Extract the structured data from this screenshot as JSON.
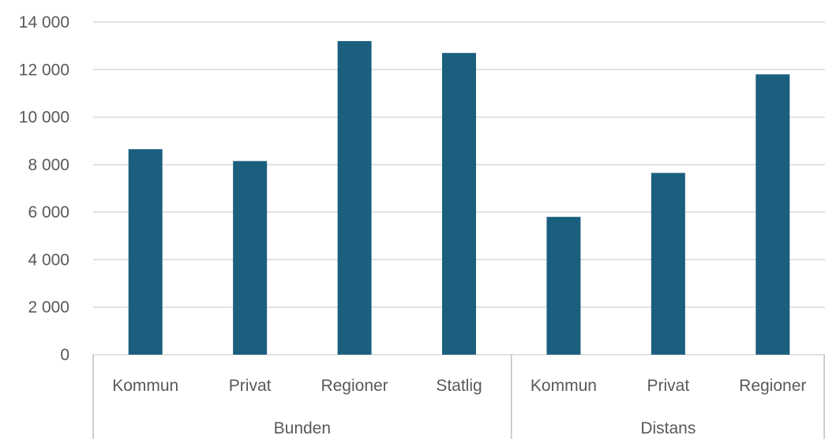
{
  "chart_data": {
    "type": "bar",
    "groups": [
      {
        "name": "Bunden",
        "categories": [
          "Kommun",
          "Privat",
          "Regioner",
          "Statlig"
        ],
        "values": [
          8650,
          8150,
          13200,
          12700
        ]
      },
      {
        "name": "Distans",
        "categories": [
          "Kommun",
          "Privat",
          "Regioner"
        ],
        "values": [
          5800,
          7650,
          11800
        ]
      }
    ],
    "ylim": [
      0,
      14000
    ],
    "yticks": [
      0,
      2000,
      4000,
      6000,
      8000,
      10000,
      12000,
      14000
    ],
    "ytick_labels": [
      "0",
      "2 000",
      "4 000",
      "6 000",
      "8 000",
      "10 000",
      "12 000",
      "14 000"
    ],
    "bar_color": "#1b5f7f",
    "grid": true,
    "legend": "none"
  }
}
